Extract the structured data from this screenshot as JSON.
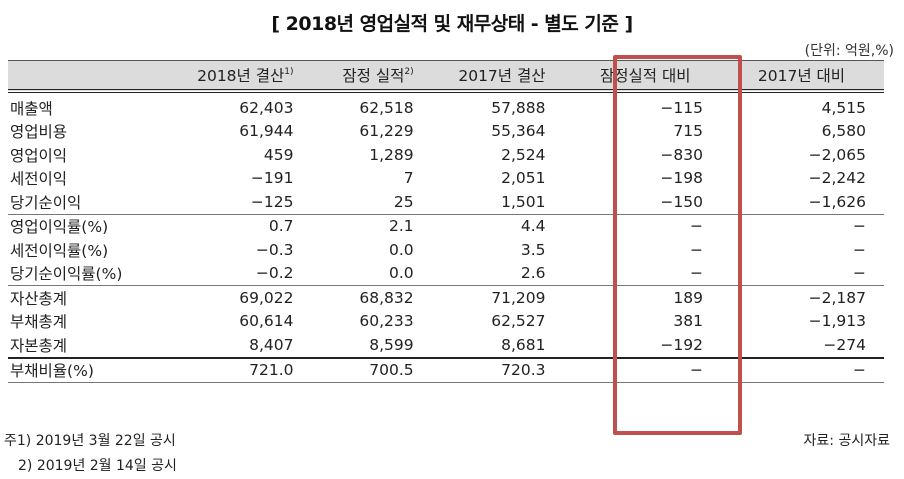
{
  "title": "[ 2018년 영업실적 및 재무상태 - 별도 기준 ]",
  "unit": "(단위: 억원,%)",
  "highlight_color": "#c0504d",
  "table": {
    "headers": [
      {
        "label": "",
        "sup": ""
      },
      {
        "label": "2018년 결산",
        "sup": "1)"
      },
      {
        "label": "잠정 실적",
        "sup": "2)"
      },
      {
        "label": "2017년 결산",
        "sup": ""
      },
      {
        "label": "잠정실적 대비",
        "sup": ""
      },
      {
        "label": "2017년 대비",
        "sup": ""
      }
    ],
    "rows": [
      {
        "label": "매출액",
        "y2018": "62,403",
        "prelim": "62,518",
        "y2017": "57,888",
        "vs_prelim": "−115",
        "vs_2017": "4,515"
      },
      {
        "label": "영업비용",
        "y2018": "61,944",
        "prelim": "61,229",
        "y2017": "55,364",
        "vs_prelim": "715",
        "vs_2017": "6,580"
      },
      {
        "label": "영업이익",
        "y2018": "459",
        "prelim": "1,289",
        "y2017": "2,524",
        "vs_prelim": "−830",
        "vs_2017": "−2,065"
      },
      {
        "label": "세전이익",
        "y2018": "−191",
        "prelim": "7",
        "y2017": "2,051",
        "vs_prelim": "−198",
        "vs_2017": "−2,242"
      },
      {
        "label": "당기순이익",
        "y2018": "−125",
        "prelim": "25",
        "y2017": "1,501",
        "vs_prelim": "−150",
        "vs_2017": "−1,626"
      },
      {
        "label": "영업이익률(%)",
        "y2018": "0.7",
        "prelim": "2.1",
        "y2017": "4.4",
        "vs_prelim": "−",
        "vs_2017": "−"
      },
      {
        "label": "세전이익률(%)",
        "y2018": "−0.3",
        "prelim": "0.0",
        "y2017": "3.5",
        "vs_prelim": "−",
        "vs_2017": "−"
      },
      {
        "label": "당기순이익률(%)",
        "y2018": "−0.2",
        "prelim": "0.0",
        "y2017": "2.6",
        "vs_prelim": "−",
        "vs_2017": "−"
      },
      {
        "label": "자산총계",
        "y2018": "69,022",
        "prelim": "68,832",
        "y2017": "71,209",
        "vs_prelim": "189",
        "vs_2017": "−2,187"
      },
      {
        "label": "부채총계",
        "y2018": "60,614",
        "prelim": "60,233",
        "y2017": "62,527",
        "vs_prelim": "381",
        "vs_2017": "−1,913"
      },
      {
        "label": "자본총계",
        "y2018": "8,407",
        "prelim": "8,599",
        "y2017": "8,681",
        "vs_prelim": "−192",
        "vs_2017": "−274"
      },
      {
        "label": "부채비율(%)",
        "y2018": "721.0",
        "prelim": "700.5",
        "y2017": "720.3",
        "vs_prelim": "−",
        "vs_2017": "−"
      }
    ]
  },
  "notes": {
    "note1": "주1) 2019년 3월 22일 공시",
    "note2": "2) 2019년 2월 14일 공시"
  },
  "source": "자료: 공시자료"
}
